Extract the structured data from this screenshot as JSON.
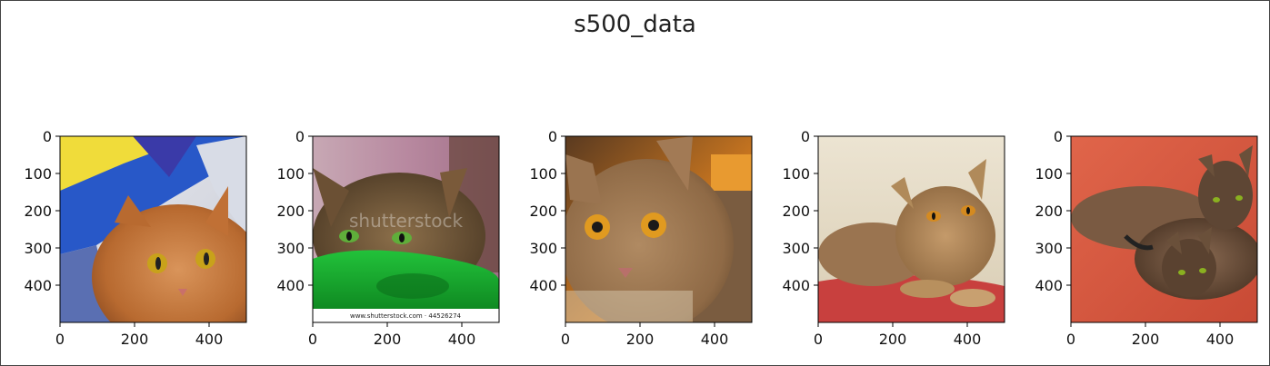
{
  "figure": {
    "title": "s500_data"
  },
  "chart_data": {
    "type": "image-grid",
    "title": "s500_data",
    "panels": [
      {
        "name": "cat-image-1",
        "xlim": [
          0,
          500
        ],
        "ylim": [
          500,
          0
        ],
        "xticks": [
          0,
          200,
          400
        ],
        "yticks": [
          0,
          100,
          200,
          300,
          400
        ],
        "subject": "orange tabby cat under blue and yellow fabric"
      },
      {
        "name": "cat-image-2",
        "xlim": [
          0,
          500
        ],
        "ylim": [
          500,
          0
        ],
        "xticks": [
          0,
          200,
          400
        ],
        "yticks": [
          0,
          100,
          200,
          300,
          400
        ],
        "subject": "abyssinian cat on green cushion",
        "watermark": "shutterstock",
        "caption": "www.shutterstock.com · 44526274"
      },
      {
        "name": "cat-image-3",
        "xlim": [
          0,
          500
        ],
        "ylim": [
          500,
          0
        ],
        "xticks": [
          0,
          200,
          400
        ],
        "yticks": [
          0,
          100,
          200,
          300,
          400
        ],
        "subject": "close-up of abyssinian cat face"
      },
      {
        "name": "cat-image-4",
        "xlim": [
          0,
          500
        ],
        "ylim": [
          500,
          0
        ],
        "xticks": [
          0,
          200,
          400
        ],
        "yticks": [
          0,
          100,
          200,
          300,
          400
        ],
        "subject": "abyssinian cat lying on red cushion"
      },
      {
        "name": "cat-image-5",
        "xlim": [
          0,
          500
        ],
        "ylim": [
          500,
          0
        ],
        "xticks": [
          0,
          200,
          400
        ],
        "yticks": [
          0,
          100,
          200,
          300,
          400
        ],
        "subject": "two abyssinian kittens on orange blanket"
      }
    ]
  }
}
